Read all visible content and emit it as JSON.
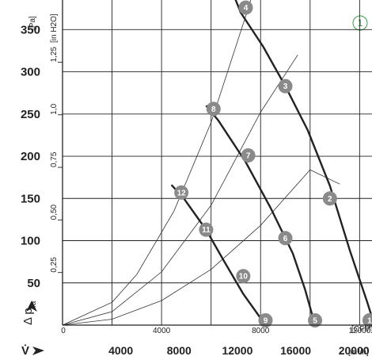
{
  "chart_data": {
    "type": "line",
    "corner_marker": "①",
    "y_axis_label": "Δ p",
    "y_axis_label_sub": "fa",
    "y_unit_pa": "[Pa]",
    "y_unit_inh2o": "[in H2O]",
    "x_unit_cfm": "[CFM]",
    "x_unit_m3h": "[m³/h]",
    "x_symbol": "V̇",
    "x_range_cfm": [
      0,
      12500
    ],
    "y_range_pa": [
      0,
      385
    ],
    "y_ticks_pa": [
      "350",
      "300",
      "250",
      "200",
      "150",
      "100",
      "50"
    ],
    "y_ticks_inh2o": [
      "1,25",
      "1,0",
      "0,75",
      "0,50",
      "0,25"
    ],
    "x_ticks_cfm": [
      "0",
      "4000",
      "8000",
      "12000"
    ],
    "x_ticks_m3h": [
      "4000",
      "8000",
      "12000",
      "16000",
      "20000"
    ],
    "fan_curves": [
      {
        "name": "",
        "points": [
          [
            6900,
            392
          ],
          [
            7200,
            370
          ],
          [
            8100,
            330
          ],
          [
            9000,
            283
          ],
          [
            9900,
            231
          ],
          [
            10800,
            165
          ],
          [
            11600,
            89
          ],
          [
            12300,
            28
          ],
          [
            12600,
            0
          ]
        ]
      },
      {
        "name": "",
        "points": [
          [
            5800,
            260
          ],
          [
            6300,
            242
          ],
          [
            7400,
            193
          ],
          [
            8400,
            139
          ],
          [
            9300,
            85
          ],
          [
            9800,
            42
          ],
          [
            10200,
            0
          ]
        ]
      },
      {
        "name": "",
        "points": [
          [
            4400,
            166
          ],
          [
            4900,
            150
          ],
          [
            5800,
            113
          ],
          [
            6500,
            77
          ],
          [
            7300,
            37
          ],
          [
            8200,
            0
          ]
        ]
      }
    ],
    "system_curves": [
      {
        "name": "",
        "points": [
          [
            0,
            0
          ],
          [
            2000,
            7
          ],
          [
            4000,
            29
          ],
          [
            6000,
            66
          ],
          [
            8000,
            118
          ],
          [
            10000,
            184
          ],
          [
            11200,
            167
          ]
        ]
      },
      {
        "name": "",
        "points": [
          [
            0,
            0
          ],
          [
            2000,
            16
          ],
          [
            4000,
            63
          ],
          [
            6000,
            142
          ],
          [
            8000,
            252
          ],
          [
            9500,
            320
          ]
        ]
      },
      {
        "name": "",
        "points": [
          [
            0,
            0
          ],
          [
            2000,
            27
          ],
          [
            3000,
            60
          ],
          [
            4500,
            135
          ],
          [
            6000,
            240
          ],
          [
            7500,
            375
          ],
          [
            7800,
            405
          ]
        ]
      }
    ],
    "operating_points": [
      {
        "label": "1",
        "x": 12400,
        "y": 0
      },
      {
        "label": "2",
        "x": 10800,
        "y": 150
      },
      {
        "label": "3",
        "x": 9000,
        "y": 283
      },
      {
        "label": "4",
        "x": 7400,
        "y": 376
      },
      {
        "label": "5",
        "x": 10200,
        "y": 0
      },
      {
        "label": "6",
        "x": 9000,
        "y": 103
      },
      {
        "label": "7",
        "x": 7500,
        "y": 201
      },
      {
        "label": "8",
        "x": 6100,
        "y": 256
      },
      {
        "label": "9",
        "x": 8200,
        "y": 0
      },
      {
        "label": "10",
        "x": 7300,
        "y": 58
      },
      {
        "label": "11",
        "x": 5800,
        "y": 113
      },
      {
        "label": "12",
        "x": 4800,
        "y": 157
      }
    ]
  }
}
